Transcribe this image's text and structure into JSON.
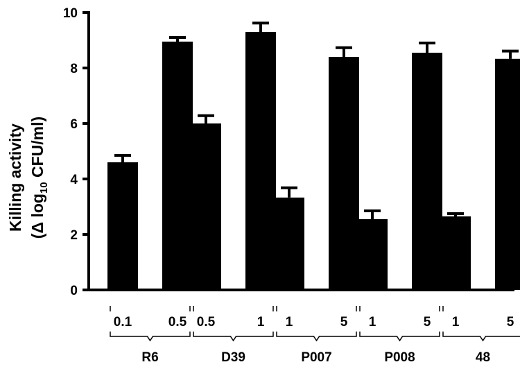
{
  "chart_data": {
    "type": "bar",
    "ylabel_line1": "Killing activity",
    "ylabel_line2_prefix": "(Δ log",
    "ylabel_line2_sub": "10",
    "ylabel_line2_suffix": " CFU/ml)",
    "ylim": [
      0,
      10
    ],
    "yticks": [
      "0",
      "2",
      "4",
      "6",
      "8",
      "10"
    ],
    "grid": false,
    "bar_color": "#000000",
    "groups": [
      {
        "label": "R6",
        "bars": [
          {
            "category": "0.1",
            "value": 4.6,
            "error": 0.25
          },
          {
            "category": "0.5",
            "value": 8.95,
            "error": 0.15
          }
        ]
      },
      {
        "label": "D39",
        "bars": [
          {
            "category": "0.5",
            "value": 6.0,
            "error": 0.28
          },
          {
            "category": "1",
            "value": 9.3,
            "error": 0.32
          }
        ]
      },
      {
        "label": "P007",
        "bars": [
          {
            "category": "1",
            "value": 3.33,
            "error": 0.35
          },
          {
            "category": "5",
            "value": 8.4,
            "error": 0.33
          }
        ]
      },
      {
        "label": "P008",
        "bars": [
          {
            "category": "1",
            "value": 2.55,
            "error": 0.3
          },
          {
            "category": "5",
            "value": 8.55,
            "error": 0.35
          }
        ]
      },
      {
        "label": "48",
        "bars": [
          {
            "category": "1",
            "value": 2.65,
            "error": 0.1
          },
          {
            "category": "5",
            "value": 8.33,
            "error": 0.28
          }
        ]
      }
    ]
  }
}
